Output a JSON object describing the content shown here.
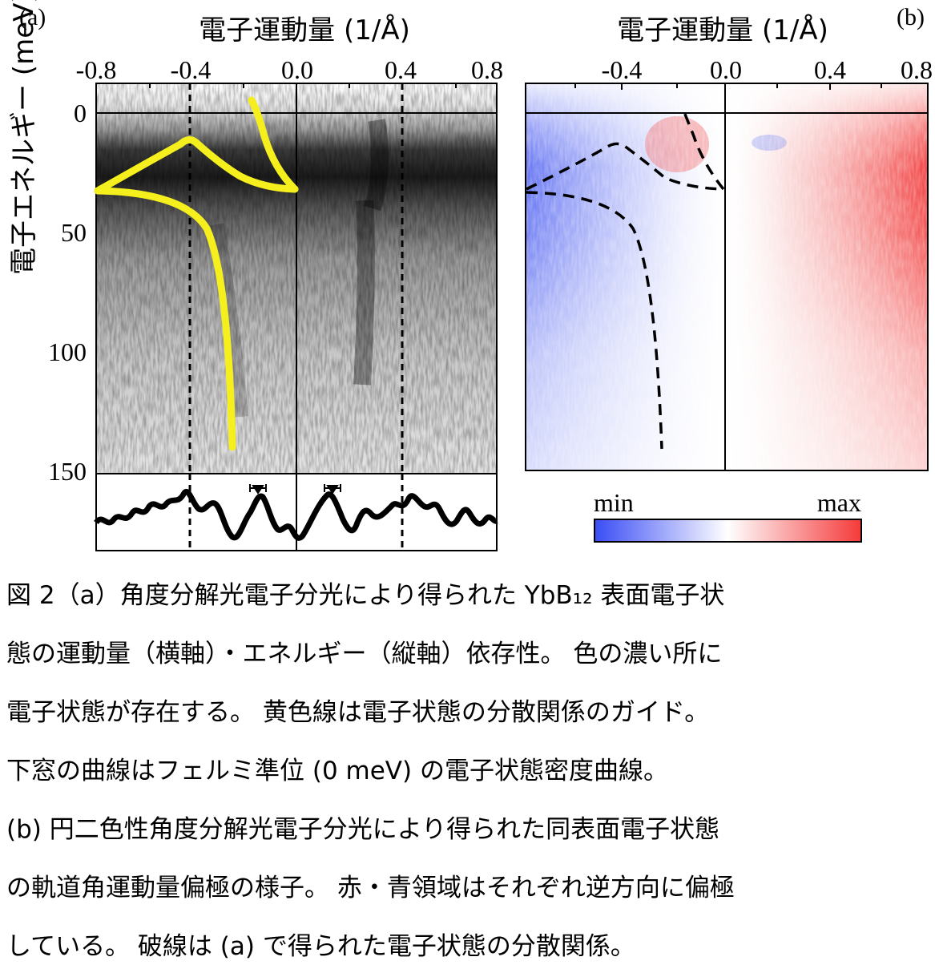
{
  "figure": {
    "panel_a_label": "(a)",
    "panel_b_label": "(b)",
    "x_axis_title": "電子運動量 (1/Å)",
    "y_axis_title": "電子エネルギー (meV)",
    "x_ticks": [
      "-0.8",
      "-0.4",
      "0.0",
      "0.4",
      "0.8"
    ],
    "y_ticks": [
      "0",
      "50",
      "100",
      "150"
    ],
    "colorbar_min": "min",
    "colorbar_max": "max",
    "colors": {
      "guide": "#f5ef1e",
      "colorbar_low": "#3a4df5",
      "colorbar_high": "#f53a3a",
      "frame": "#000000"
    }
  },
  "caption": {
    "line1": "図 2（a）角度分解光電子分光により得られた YbB₁₂ 表面電子状",
    "line2": "態の運動量（横軸）・エネルギー（縦軸）依存性。 色の濃い所に",
    "line3": "電子状態が存在する。 黄色線は電子状態の分散関係のガイド。",
    "line4": "下窓の曲線はフェルミ準位 (0 meV) の電子状態密度曲線。",
    "line5": "(b) 円二色性角度分解光電子分光により得られた同表面電子状態",
    "line6": "の軌道角運動量偏極の様子。 赤・青領域はそれぞれ逆方向に偏極",
    "line7": "している。 破線は (a) で得られた電子状態の分散関係。"
  }
}
